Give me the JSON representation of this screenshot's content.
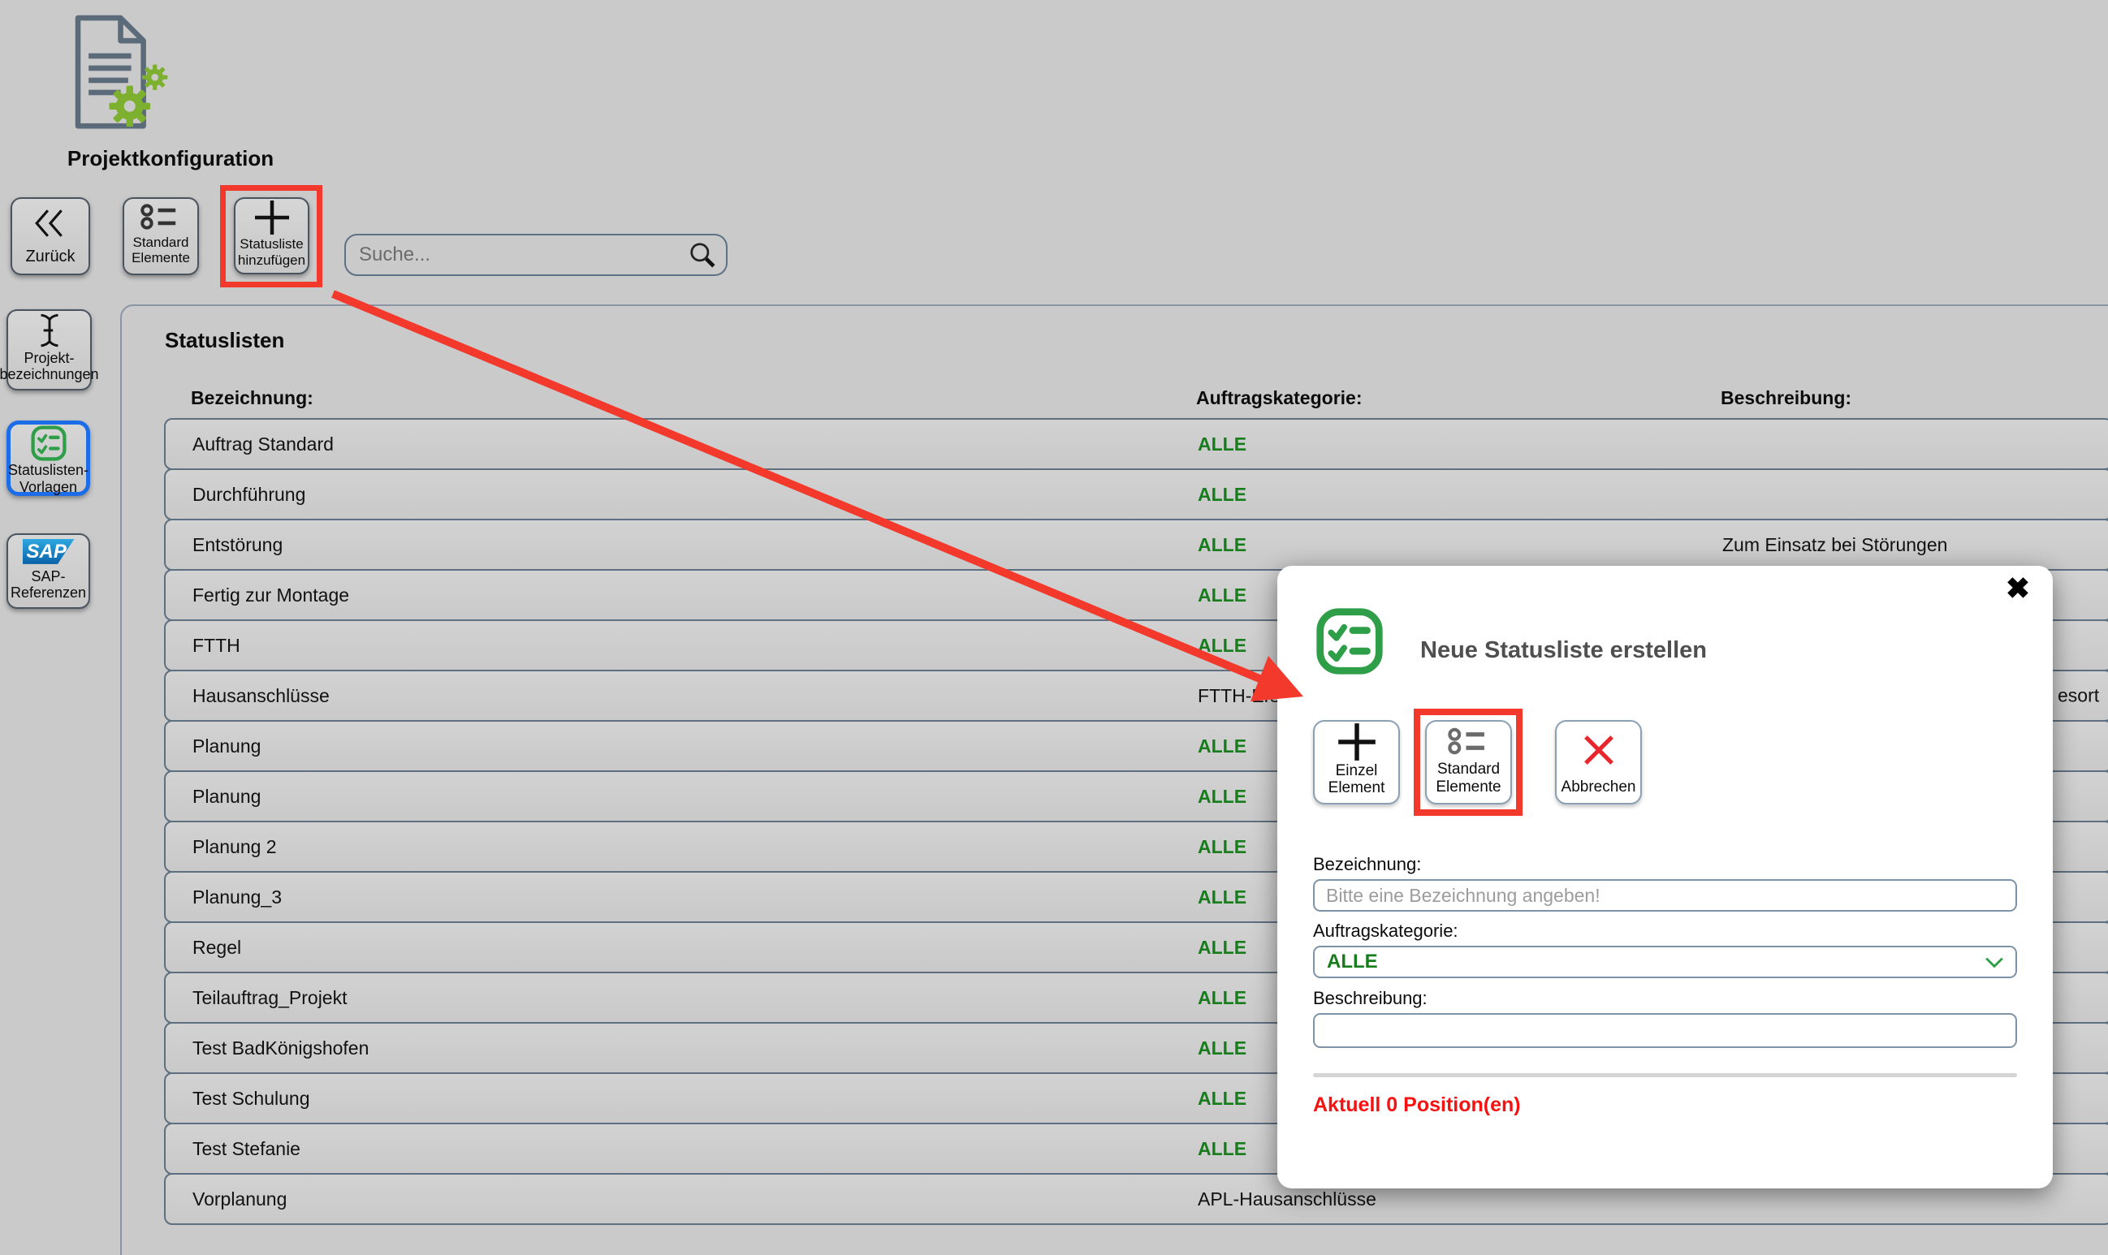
{
  "app": {
    "title": "Projektkonfiguration"
  },
  "toolbar": {
    "back": {
      "label": "Zurück"
    },
    "standard_elements": {
      "line1": "Standard",
      "line2": "Elemente"
    },
    "add_statuslist": {
      "line1": "Statusliste",
      "line2": "hinzufügen"
    },
    "search": {
      "placeholder": "Suche..."
    }
  },
  "sidebar": {
    "items": [
      {
        "line1": "Projekt-",
        "line2": "bezeichnungen",
        "selected": false
      },
      {
        "line1": "Statuslisten-",
        "line2": "Vorlagen",
        "selected": true
      },
      {
        "line1": "SAP-",
        "line2": "Referenzen",
        "logo_text": "SAP",
        "selected": false
      }
    ]
  },
  "main": {
    "title": "Statuslisten",
    "columns": {
      "bezeichnung": "Bezeichnung:",
      "auftragskategorie": "Auftragskategorie:",
      "beschreibung": "Beschreibung:"
    }
  },
  "table": {
    "rows": [
      {
        "bezeichnung": "Auftrag Standard",
        "kategorie": "ALLE",
        "alle": true,
        "beschreibung": ""
      },
      {
        "bezeichnung": "Durchführung",
        "kategorie": "ALLE",
        "alle": true,
        "beschreibung": ""
      },
      {
        "bezeichnung": "Entstörung",
        "kategorie": "ALLE",
        "alle": true,
        "beschreibung": "Zum Einsatz bei Störungen"
      },
      {
        "bezeichnung": "Fertig zur Montage",
        "kategorie": "ALLE",
        "alle": true,
        "beschreibung": ""
      },
      {
        "bezeichnung": "FTTH",
        "kategorie": "ALLE",
        "alle": true,
        "beschreibung": ""
      },
      {
        "bezeichnung": "Hausanschlüsse",
        "kategorie": "FTTH-Ersc",
        "alle": false,
        "beschreibung": "",
        "fragment": "esort"
      },
      {
        "bezeichnung": "Planung",
        "kategorie": "ALLE",
        "alle": true,
        "beschreibung": ""
      },
      {
        "bezeichnung": "Planung",
        "kategorie": "ALLE",
        "alle": true,
        "beschreibung": ""
      },
      {
        "bezeichnung": "Planung 2",
        "kategorie": "ALLE",
        "alle": true,
        "beschreibung": ""
      },
      {
        "bezeichnung": "Planung_3",
        "kategorie": "ALLE",
        "alle": true,
        "beschreibung": ""
      },
      {
        "bezeichnung": "Regel",
        "kategorie": "ALLE",
        "alle": true,
        "beschreibung": ""
      },
      {
        "bezeichnung": "Teilauftrag_Projekt",
        "kategorie": "ALLE",
        "alle": true,
        "beschreibung": ""
      },
      {
        "bezeichnung": "Test BadKönigshofen",
        "kategorie": "ALLE",
        "alle": true,
        "beschreibung": ""
      },
      {
        "bezeichnung": "Test Schulung",
        "kategorie": "ALLE",
        "alle": true,
        "beschreibung": ""
      },
      {
        "bezeichnung": "Test Stefanie",
        "kategorie": "ALLE",
        "alle": true,
        "beschreibung": ""
      },
      {
        "bezeichnung": "Vorplanung",
        "kategorie": "APL-Hausanschlüsse",
        "alle": false,
        "beschreibung": ""
      }
    ]
  },
  "modal": {
    "title": "Neue Statusliste erstellen",
    "close_glyph": "✖",
    "buttons": {
      "einzel": {
        "line1": "Einzel",
        "line2": "Element"
      },
      "standard": {
        "line1": "Standard",
        "line2": "Elemente"
      },
      "abbrechen": {
        "label": "Abbrechen"
      }
    },
    "fields": {
      "bezeichnung": {
        "label": "Bezeichnung:",
        "placeholder": "Bitte eine Bezeichnung angeben!",
        "value": ""
      },
      "auftragskategorie": {
        "label": "Auftragskategorie:",
        "value": "ALLE"
      },
      "beschreibung": {
        "label": "Beschreibung:",
        "value": ""
      }
    },
    "footer": "Aktuell 0 Position(en)"
  },
  "colors": {
    "accent_red": "#F2392C",
    "green_text": "#177D1C",
    "icon_green": "#2F9E48",
    "selected_blue": "#1D6CE8",
    "sap_blue_top": "#2EA8E0",
    "sap_blue_bottom": "#0A62A8",
    "warning_red": "#F41212"
  }
}
